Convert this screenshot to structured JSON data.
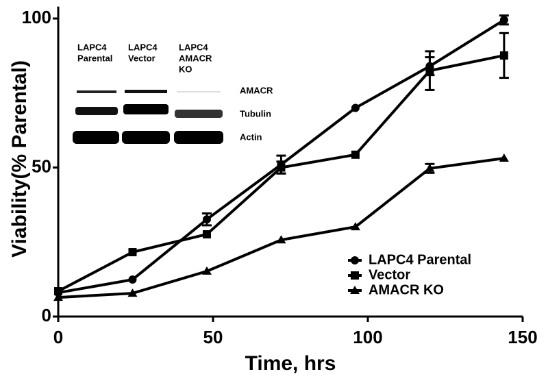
{
  "chart_data": {
    "type": "line",
    "xlabel": "Time, hrs",
    "ylabel": "Viability(% Parental)",
    "x": [
      0,
      24,
      48,
      72,
      96,
      120,
      144
    ],
    "series": [
      {
        "name": "LAPC4 Parental",
        "color": "#000000",
        "marker": "circle",
        "values": [
          8,
          12.4,
          32.6,
          51,
          70,
          84,
          99.5
        ],
        "errors": [
          null,
          null,
          2,
          3,
          null,
          3,
          1.5
        ]
      },
      {
        "name": "Vector",
        "color": "#000000",
        "marker": "square",
        "values": [
          8.5,
          21.6,
          27.6,
          50,
          54.3,
          82.5,
          87.6
        ],
        "errors": [
          null,
          null,
          null,
          2,
          null,
          6.5,
          7.5
        ]
      },
      {
        "name": "AMACR KO",
        "color": "#000000",
        "marker": "triangle",
        "values": [
          6.4,
          7.8,
          15.2,
          25.7,
          30.1,
          49.7,
          53.1
        ],
        "errors": [
          null,
          null,
          null,
          null,
          null,
          1.5,
          null
        ]
      }
    ],
    "xlim": [
      0,
      150
    ],
    "xticks": [
      0,
      50,
      100,
      150
    ],
    "ylim": [
      0,
      104
    ],
    "yticks": [
      0,
      50,
      100
    ],
    "grid": false,
    "legend": "lower right",
    "inset": {
      "lanes": [
        [
          "LAPC4",
          "Parental"
        ],
        [
          "LAPC4",
          "Vector"
        ],
        [
          "LAPC4",
          "AMACR",
          "KO"
        ]
      ],
      "bands": [
        "AMACR",
        "Tubulin",
        "Actin"
      ]
    }
  }
}
